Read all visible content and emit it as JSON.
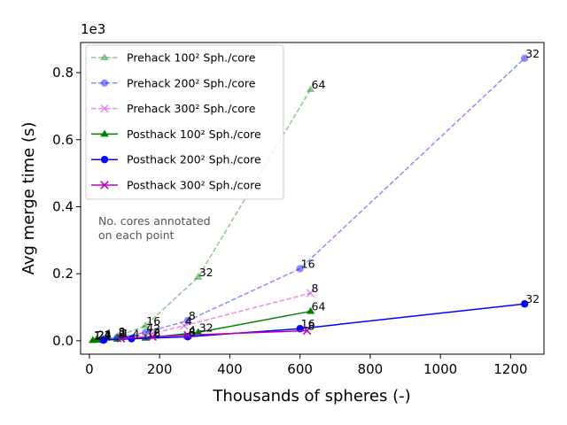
{
  "chart_data": {
    "type": "line",
    "xlabel": "Thousands of spheres (-)",
    "ylabel": "Avg merge time (s)",
    "y_offset_text": "1e3",
    "xlim": [
      -25,
      1295
    ],
    "ylim": [
      -0.04,
      0.89
    ],
    "xticks": [
      0,
      200,
      400,
      600,
      800,
      1000,
      1200
    ],
    "yticks": [
      0.0,
      0.2,
      0.4,
      0.6,
      0.8
    ],
    "ytick_labels": [
      "0.0",
      "0.2",
      "0.4",
      "0.6",
      "0.8"
    ],
    "legend_position": "upper-left",
    "note": [
      "No. cores annotated",
      "on each point"
    ],
    "series": [
      {
        "name": "Prehack 100² Sph./core",
        "color": "#008000",
        "style": "dashed",
        "alpha": 0.45,
        "marker": "triangle",
        "x": [
          10,
          20,
          40,
          80,
          160,
          310,
          630
        ],
        "y": [
          0.002,
          0.003,
          0.006,
          0.013,
          0.045,
          0.19,
          0.75
        ],
        "labels": [
          "1",
          "2",
          "4",
          "8",
          "16",
          "32",
          "64"
        ]
      },
      {
        "name": "Prehack 200² Sph./core",
        "color": "#0000ff",
        "style": "dashed",
        "alpha": 0.45,
        "marker": "circle",
        "x": [
          40,
          80,
          160,
          280,
          600,
          1240
        ],
        "y": [
          0.004,
          0.01,
          0.025,
          0.06,
          0.215,
          0.843
        ],
        "labels": [
          "1",
          "2",
          "4",
          "8",
          "16",
          "32"
        ]
      },
      {
        "name": "Prehack 300² Sph./core",
        "color": "#cc00cc",
        "style": "dashed",
        "alpha": 0.45,
        "marker": "x",
        "x": [
          90,
          180,
          270,
          630
        ],
        "y": [
          0.008,
          0.022,
          0.045,
          0.142
        ],
        "labels": [
          "1",
          "2",
          "4",
          "8"
        ]
      },
      {
        "name": "Posthack 100² Sph./core",
        "color": "#008000",
        "style": "solid",
        "alpha": 1.0,
        "marker": "triangle",
        "x": [
          10,
          20,
          40,
          80,
          160,
          310,
          630
        ],
        "y": [
          0.001,
          0.002,
          0.003,
          0.005,
          0.008,
          0.025,
          0.088
        ],
        "labels": [
          "1",
          "2",
          "4",
          "8",
          "16",
          "32",
          "64"
        ]
      },
      {
        "name": "Posthack 200² Sph./core",
        "color": "#0000ff",
        "style": "solid",
        "alpha": 1.0,
        "marker": "circle",
        "x": [
          40,
          120,
          280,
          600,
          1240
        ],
        "y": [
          0.002,
          0.006,
          0.012,
          0.036,
          0.11
        ],
        "labels": [
          "2",
          "4",
          "8",
          "16",
          "32"
        ]
      },
      {
        "name": "Posthack 300² Sph./core",
        "color": "#bb00bb",
        "style": "solid",
        "alpha": 1.0,
        "marker": "x",
        "x": [
          90,
          180,
          280,
          620
        ],
        "y": [
          0.007,
          0.012,
          0.017,
          0.03
        ],
        "labels": [
          "1",
          "2",
          "4",
          "8"
        ]
      }
    ]
  }
}
